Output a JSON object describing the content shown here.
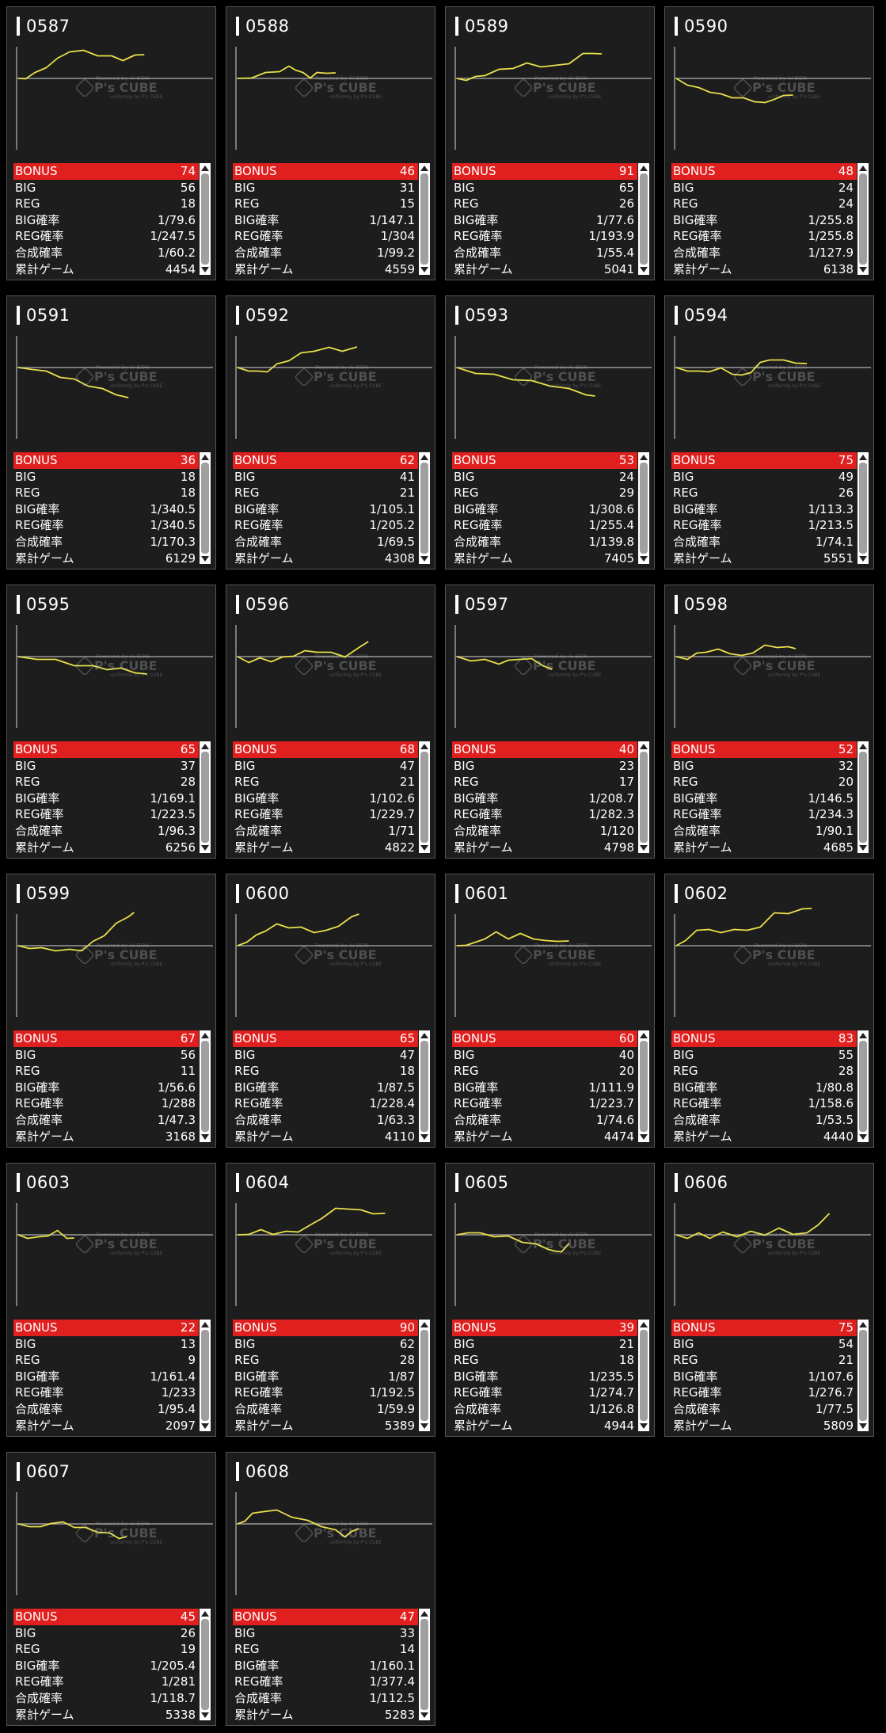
{
  "watermark": {
    "brand": "P's CUBE",
    "top": "Powered by Ai-BON",
    "bottom": "uniformly by P's CUBE"
  },
  "colors": {
    "line": "#e8e04a",
    "bonus_bg": "#e0201e",
    "card_bg": "#1d1d1d"
  },
  "labels": [
    "BONUS",
    "BIG",
    "REG",
    "BIG確率",
    "REG確率",
    "合成確率",
    "累計ゲーム"
  ],
  "machines": [
    {
      "id": "0587",
      "bonus": "74",
      "big": "56",
      "reg": "18",
      "big_rate": "1/79.6",
      "reg_rate": "1/247.5",
      "total_rate": "1/60.2",
      "games": "4454"
    },
    {
      "id": "0588",
      "bonus": "46",
      "big": "31",
      "reg": "15",
      "big_rate": "1/147.1",
      "reg_rate": "1/304",
      "total_rate": "1/99.2",
      "games": "4559"
    },
    {
      "id": "0589",
      "bonus": "91",
      "big": "65",
      "reg": "26",
      "big_rate": "1/77.6",
      "reg_rate": "1/193.9",
      "total_rate": "1/55.4",
      "games": "5041"
    },
    {
      "id": "0590",
      "bonus": "48",
      "big": "24",
      "reg": "24",
      "big_rate": "1/255.8",
      "reg_rate": "1/255.8",
      "total_rate": "1/127.9",
      "games": "6138"
    },
    {
      "id": "0591",
      "bonus": "36",
      "big": "18",
      "reg": "18",
      "big_rate": "1/340.5",
      "reg_rate": "1/340.5",
      "total_rate": "1/170.3",
      "games": "6129"
    },
    {
      "id": "0592",
      "bonus": "62",
      "big": "41",
      "reg": "21",
      "big_rate": "1/105.1",
      "reg_rate": "1/205.2",
      "total_rate": "1/69.5",
      "games": "4308"
    },
    {
      "id": "0593",
      "bonus": "53",
      "big": "24",
      "reg": "29",
      "big_rate": "1/308.6",
      "reg_rate": "1/255.4",
      "total_rate": "1/139.8",
      "games": "7405"
    },
    {
      "id": "0594",
      "bonus": "75",
      "big": "49",
      "reg": "26",
      "big_rate": "1/113.3",
      "reg_rate": "1/213.5",
      "total_rate": "1/74.1",
      "games": "5551"
    },
    {
      "id": "0595",
      "bonus": "65",
      "big": "37",
      "reg": "28",
      "big_rate": "1/169.1",
      "reg_rate": "1/223.5",
      "total_rate": "1/96.3",
      "games": "6256"
    },
    {
      "id": "0596",
      "bonus": "68",
      "big": "47",
      "reg": "21",
      "big_rate": "1/102.6",
      "reg_rate": "1/229.7",
      "total_rate": "1/71",
      "games": "4822"
    },
    {
      "id": "0597",
      "bonus": "40",
      "big": "23",
      "reg": "17",
      "big_rate": "1/208.7",
      "reg_rate": "1/282.3",
      "total_rate": "1/120",
      "games": "4798"
    },
    {
      "id": "0598",
      "bonus": "52",
      "big": "32",
      "reg": "20",
      "big_rate": "1/146.5",
      "reg_rate": "1/234.3",
      "total_rate": "1/90.1",
      "games": "4685"
    },
    {
      "id": "0599",
      "bonus": "67",
      "big": "56",
      "reg": "11",
      "big_rate": "1/56.6",
      "reg_rate": "1/288",
      "total_rate": "1/47.3",
      "games": "3168"
    },
    {
      "id": "0600",
      "bonus": "65",
      "big": "47",
      "reg": "18",
      "big_rate": "1/87.5",
      "reg_rate": "1/228.4",
      "total_rate": "1/63.3",
      "games": "4110"
    },
    {
      "id": "0601",
      "bonus": "60",
      "big": "40",
      "reg": "20",
      "big_rate": "1/111.9",
      "reg_rate": "1/223.7",
      "total_rate": "1/74.6",
      "games": "4474"
    },
    {
      "id": "0602",
      "bonus": "83",
      "big": "55",
      "reg": "28",
      "big_rate": "1/80.8",
      "reg_rate": "1/158.6",
      "total_rate": "1/53.5",
      "games": "4440"
    },
    {
      "id": "0603",
      "bonus": "22",
      "big": "13",
      "reg": "9",
      "big_rate": "1/161.4",
      "reg_rate": "1/233",
      "total_rate": "1/95.4",
      "games": "2097"
    },
    {
      "id": "0604",
      "bonus": "90",
      "big": "62",
      "reg": "28",
      "big_rate": "1/87",
      "reg_rate": "1/192.5",
      "total_rate": "1/59.9",
      "games": "5389"
    },
    {
      "id": "0605",
      "bonus": "39",
      "big": "21",
      "reg": "18",
      "big_rate": "1/235.5",
      "reg_rate": "1/274.7",
      "total_rate": "1/126.8",
      "games": "4944"
    },
    {
      "id": "0606",
      "bonus": "75",
      "big": "54",
      "reg": "21",
      "big_rate": "1/107.6",
      "reg_rate": "1/276.7",
      "total_rate": "1/77.5",
      "games": "5809"
    },
    {
      "id": "0607",
      "bonus": "45",
      "big": "26",
      "reg": "19",
      "big_rate": "1/205.4",
      "reg_rate": "1/281",
      "total_rate": "1/118.7",
      "games": "5338"
    },
    {
      "id": "0608",
      "bonus": "47",
      "big": "33",
      "reg": "14",
      "big_rate": "1/160.1",
      "reg_rate": "1/377.4",
      "total_rate": "1/112.5",
      "games": "5283"
    }
  ]
}
